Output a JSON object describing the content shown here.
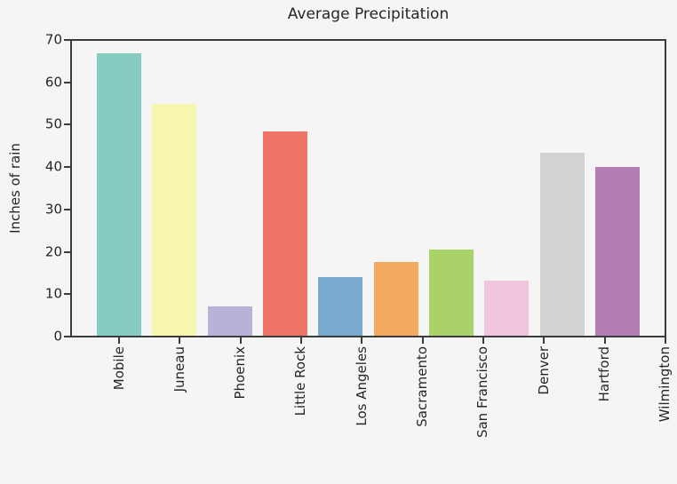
{
  "figure": {
    "background_color": "#f5f5f5",
    "axis_color": "#3b3b3b",
    "text_color": "#262626"
  },
  "chart_data": {
    "type": "bar",
    "title": "Average Precipitation",
    "xlabel": "",
    "ylabel": "Inches of rain",
    "categories": [
      "Mobile",
      "Juneau",
      "Phoenix",
      "Little Rock",
      "Los Angeles",
      "Sacramento",
      "San Francisco",
      "Denver",
      "Hartford",
      "Wilmington"
    ],
    "values": [
      67,
      55,
      7,
      48.5,
      14,
      17.5,
      20.5,
      13,
      43.5,
      40
    ],
    "bar_colors": [
      "#86ccc0",
      "#f6f6ac",
      "#b6b3d7",
      "#ef7667",
      "#7aa9ce",
      "#f3a95f",
      "#a9d268",
      "#f2c5df",
      "#d2d2d2",
      "#b37eb5"
    ],
    "ylim": [
      0,
      70
    ],
    "yticks": [
      0,
      10,
      20,
      30,
      40,
      50,
      60,
      70
    ],
    "x_tick_rotation": 90,
    "grid": false,
    "legend_position": "none"
  }
}
